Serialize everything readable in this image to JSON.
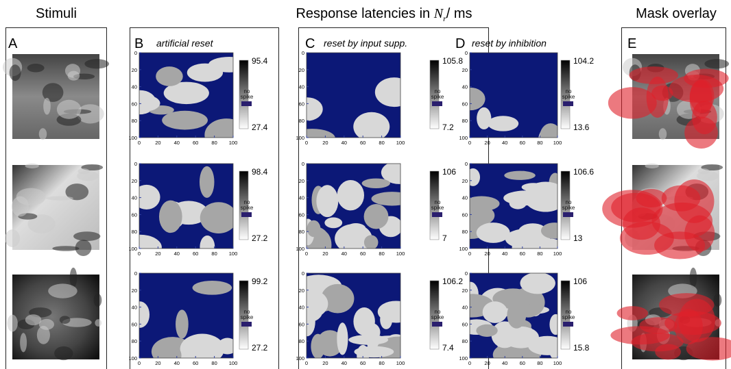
{
  "header": {
    "stimuli": "Stimuli",
    "latency": "Response latencies in",
    "symbol": "N",
    "subscript": "r",
    "unit": "/ ms",
    "mask": "Mask overlay"
  },
  "panels": [
    {
      "letter": "A"
    },
    {
      "letter": "B",
      "title": "artificial reset",
      "colorbars": [
        {
          "max": 95.4,
          "min": 27.4
        },
        {
          "max": 98.4,
          "min": 27.2
        },
        {
          "max": 99.2,
          "min": 27.2
        }
      ]
    },
    {
      "letter": "C",
      "title": "reset by input supp.",
      "colorbars": [
        {
          "max": 105.8,
          "min": 7.2
        },
        {
          "max": 106,
          "min": 7
        },
        {
          "max": 106.2,
          "min": 7.4
        }
      ]
    },
    {
      "letter": "D",
      "title": "reset by inhibition",
      "colorbars": [
        {
          "max": 104.2,
          "min": 13.6
        },
        {
          "max": 106.6,
          "min": 13
        },
        {
          "max": 106,
          "min": 15.8
        }
      ]
    },
    {
      "letter": "E"
    }
  ],
  "no_spike": "no spike",
  "axis_ticks": [
    0,
    20,
    40,
    60,
    80,
    100
  ]
}
